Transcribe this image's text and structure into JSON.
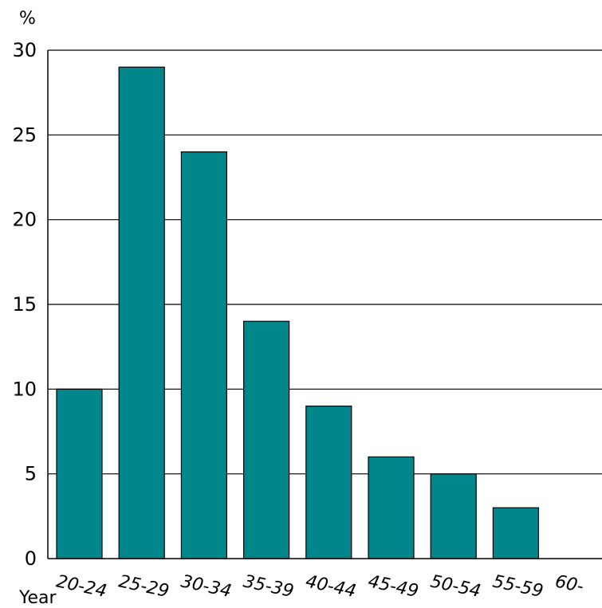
{
  "chart_data": {
    "type": "bar",
    "title": "",
    "ylabel": "%",
    "xlabel": "Year",
    "categories": [
      "20-24",
      "25-29",
      "30-34",
      "35-39",
      "40-44",
      "45-49",
      "50-54",
      "55-59",
      "60-"
    ],
    "values": [
      10,
      29,
      24,
      14,
      9,
      6,
      5,
      3,
      0
    ],
    "ylim": [
      0,
      30
    ],
    "yticks": [
      0,
      5,
      10,
      15,
      20,
      25,
      30
    ],
    "grid": true,
    "bar_color": "#00868B"
  }
}
